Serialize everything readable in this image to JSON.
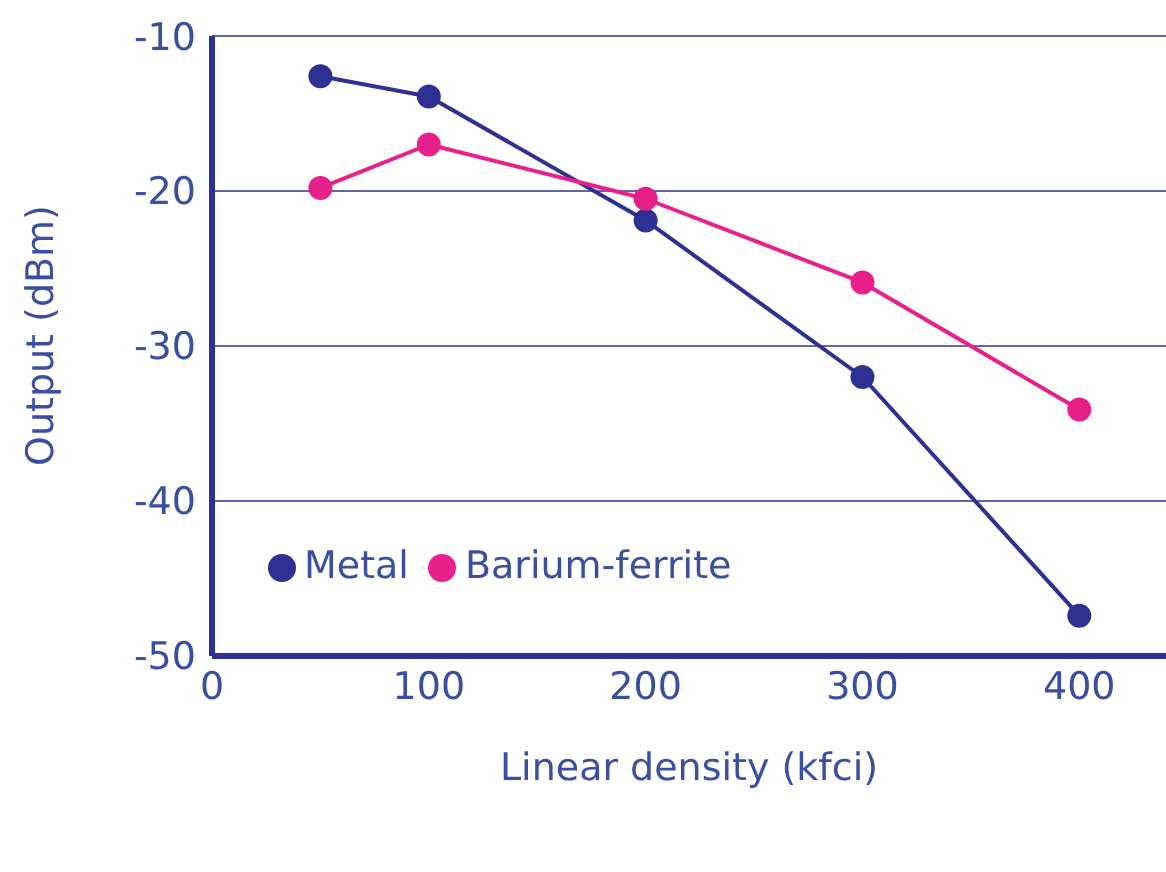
{
  "chart_data": {
    "type": "line",
    "xlabel": "Linear density (kfci)",
    "ylabel": "Output (dBm)",
    "x": [
      50,
      100,
      200,
      300,
      400
    ],
    "series": [
      {
        "name": "Metal",
        "color": "#2e3192",
        "values": [
          -12.6,
          -13.9,
          -21.9,
          -32.0,
          -47.4
        ]
      },
      {
        "name": "Barium-ferrite",
        "color": "#e8208c",
        "values": [
          -19.8,
          -17.0,
          -20.5,
          -25.9,
          -34.1
        ]
      }
    ],
    "xlim": [
      0,
      440
    ],
    "xticks": [
      0,
      100,
      200,
      300,
      400
    ],
    "ylim": [
      -50,
      -10
    ],
    "yticks": [
      -50,
      -40,
      -30,
      -20,
      -10
    ],
    "grid": "y",
    "legend": "left",
    "marker": "circle",
    "line_style": "solid"
  }
}
